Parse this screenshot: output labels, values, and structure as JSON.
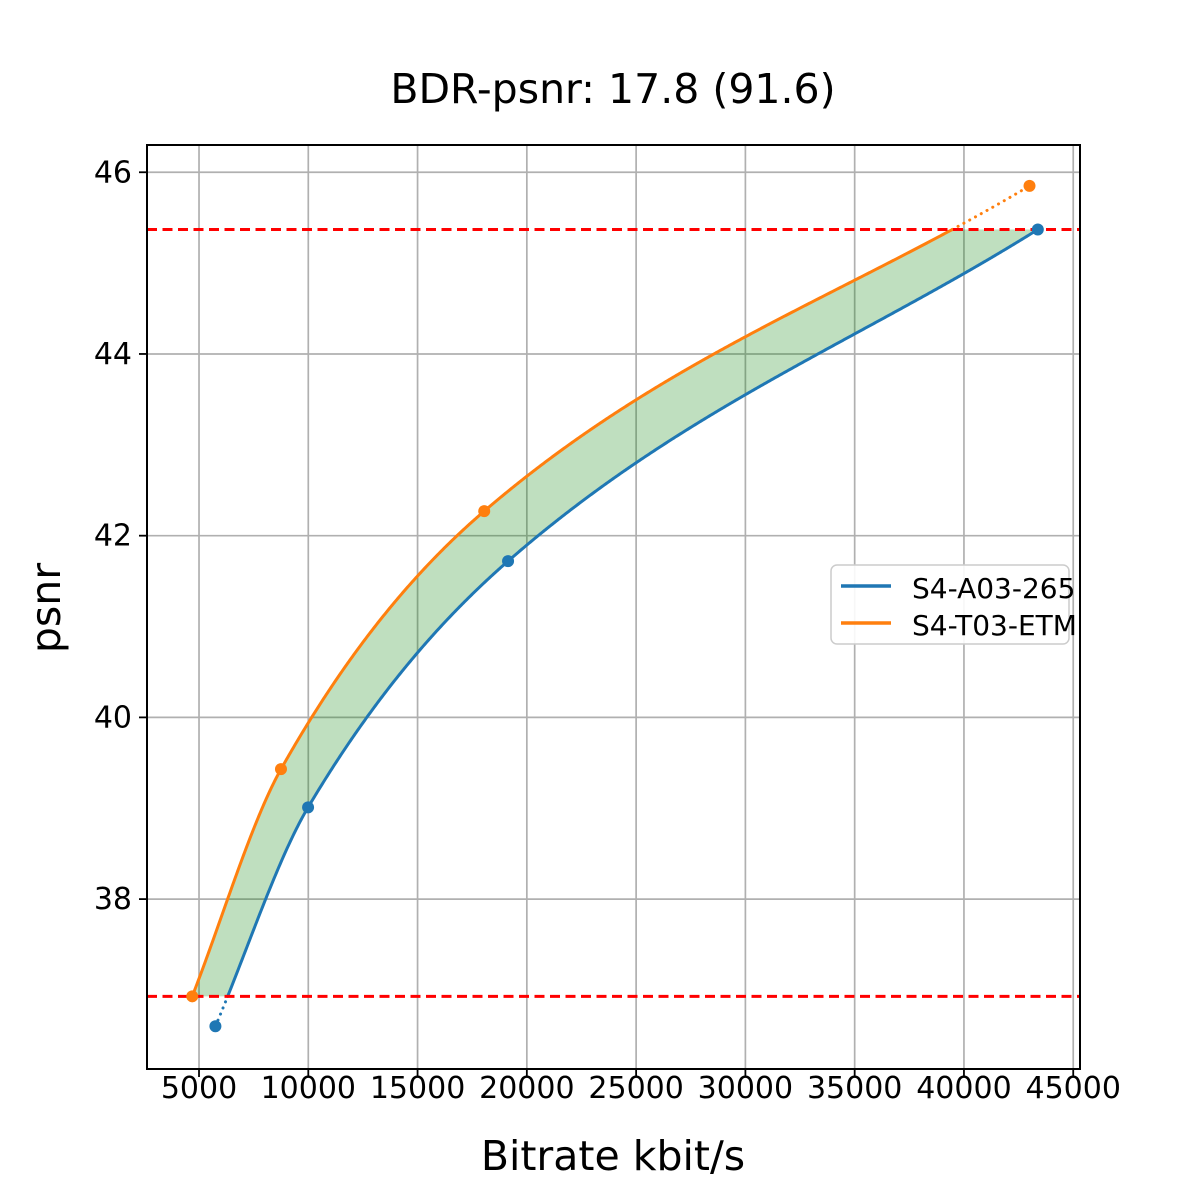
{
  "chart_data": {
    "type": "line",
    "title": "BDR-psnr: 17.8 (91.6)",
    "xlabel": "Bitrate kbit/s",
    "ylabel": "psnr",
    "xlim": [
      2620,
      45310
    ],
    "ylim": [
      36.13,
      46.3
    ],
    "x_ticks": [
      5000,
      10000,
      15000,
      20000,
      25000,
      30000,
      35000,
      40000,
      45000
    ],
    "y_ticks": [
      38,
      40,
      42,
      44,
      46
    ],
    "grid": true,
    "legend_position": "center right",
    "series": [
      {
        "name": "S4-A03-265",
        "color": "#1f77b4",
        "marker": "circle",
        "points": [
          [
            5750,
            36.6
          ],
          [
            9990,
            39.01
          ],
          [
            19140,
            41.72
          ],
          [
            43380,
            45.37
          ]
        ]
      },
      {
        "name": "S4-T03-ETM",
        "color": "#ff7f0e",
        "marker": "circle",
        "points": [
          [
            4690,
            36.93
          ],
          [
            8750,
            39.43
          ],
          [
            18050,
            42.27
          ],
          [
            43000,
            45.85
          ]
        ]
      }
    ],
    "hlines": {
      "values": [
        36.93,
        45.37
      ],
      "color": "#ff0000",
      "style": "dashed",
      "note": "psnr overlap bounds used for BD-rate; curves drawn dotted outside this range"
    },
    "fill_between": {
      "color": "#008000",
      "alpha": 0.25,
      "range": [
        36.93,
        45.37
      ]
    }
  },
  "styles": {
    "background": "#ffffff",
    "grid_color": "#b0b0b0",
    "spine_color": "#000000",
    "legend_border": "#cccccc",
    "legend_bg": "#ffffff"
  }
}
